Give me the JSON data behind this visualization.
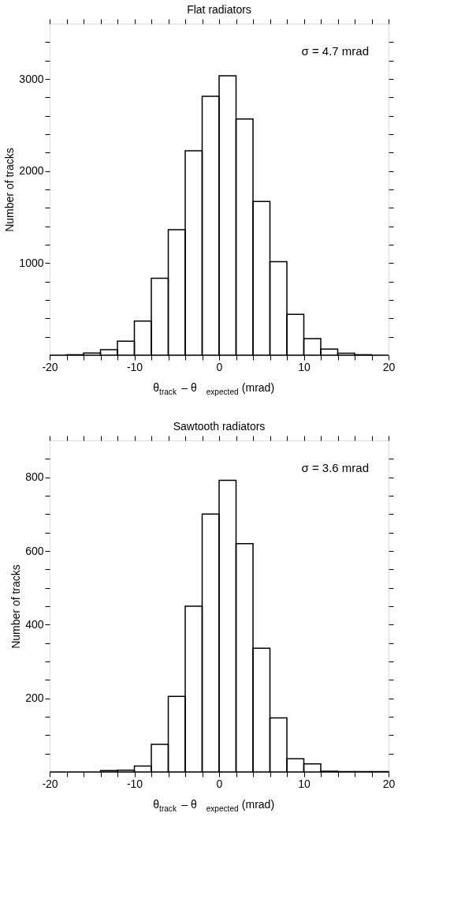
{
  "chart_data": [
    {
      "type": "histogram",
      "title": "Flat radiators",
      "xlabel": "θ$_{track}$ – θ$_{expected}$ (mrad)",
      "ylabel": "Number of tracks",
      "bins": [
        -20,
        -18,
        -16,
        -14,
        -12,
        -10,
        -8,
        -6,
        -4,
        -2,
        0,
        2,
        4,
        6,
        8,
        10,
        12,
        14,
        16,
        18,
        20
      ],
      "values": [
        0,
        5,
        24,
        61,
        152,
        370,
        835,
        1362,
        2221,
        2811,
        3035,
        2564,
        1670,
        1016,
        444,
        181,
        66,
        21,
        5,
        0
      ],
      "color": "#000000",
      "xlim": [
        -20,
        20
      ],
      "ylim": [
        0,
        3600
      ],
      "xticks": [
        -20,
        {
          "value": -18,
          "label": null
        },
        {
          "value": -16,
          "label": null
        },
        {
          "value": -14,
          "label": null
        },
        {
          "value": -12,
          "label": null
        },
        -10,
        {
          "value": -8,
          "label": null
        },
        {
          "value": -6,
          "label": null
        },
        {
          "value": -4,
          "label": null
        },
        {
          "value": -2,
          "label": null
        },
        0,
        {
          "value": 2,
          "label": null
        },
        {
          "value": 4,
          "label": null
        },
        {
          "value": 6,
          "label": null
        },
        {
          "value": 8,
          "label": null
        },
        10,
        {
          "value": 12,
          "label": null
        },
        {
          "value": 14,
          "label": null
        },
        {
          "value": 16,
          "label": null
        },
        {
          "value": 18,
          "label": null
        },
        20
      ],
      "yticks": [
        {
          "value": 200,
          "label": null
        },
        {
          "value": 400,
          "label": null
        },
        {
          "value": 600,
          "label": null
        },
        {
          "value": 800,
          "label": null
        },
        1000,
        {
          "value": 1200,
          "label": null
        },
        {
          "value": 1400,
          "label": null
        },
        {
          "value": 1600,
          "label": null
        },
        {
          "value": 1800,
          "label": null
        },
        2000,
        {
          "value": 2200,
          "label": null
        },
        {
          "value": 2400,
          "label": null
        },
        {
          "value": 2600,
          "label": null
        },
        {
          "value": 2800,
          "label": null
        },
        3000,
        {
          "value": 3200,
          "label": null
        },
        {
          "value": 3400,
          "label": null
        }
      ],
      "annotations": [
        "σ = 4.7 mrad"
      ],
      "grid": false
    },
    {
      "type": "histogram",
      "title": "Sawtooth radiators",
      "xlabel": "θ$_{track}$ – θ$_{expected}$ (mrad)",
      "ylabel": "Number of tracks",
      "bins": [
        -20,
        -18,
        -16,
        -14,
        -12,
        -10,
        -8,
        -6,
        -4,
        -2,
        0,
        2,
        4,
        6,
        8,
        10,
        12,
        14,
        16,
        18,
        20
      ],
      "values": [
        0,
        0,
        0,
        4,
        5,
        16,
        75,
        205,
        450,
        700,
        792,
        620,
        336,
        147,
        36,
        22,
        2,
        1,
        1,
        1
      ],
      "color": "#000000",
      "xlim": [
        -20,
        20
      ],
      "ylim": [
        0,
        900
      ],
      "xticks": [
        -20,
        {
          "value": -18,
          "label": null
        },
        {
          "value": -16,
          "label": null
        },
        {
          "value": -14,
          "label": null
        },
        {
          "value": -12,
          "label": null
        },
        -10,
        {
          "value": -8,
          "label": null
        },
        {
          "value": -6,
          "label": null
        },
        {
          "value": -4,
          "label": null
        },
        {
          "value": -2,
          "label": null
        },
        0,
        {
          "value": 2,
          "label": null
        },
        {
          "value": 4,
          "label": null
        },
        {
          "value": 6,
          "label": null
        },
        {
          "value": 8,
          "label": null
        },
        10,
        {
          "value": 12,
          "label": null
        },
        {
          "value": 14,
          "label": null
        },
        {
          "value": 16,
          "label": null
        },
        {
          "value": 18,
          "label": null
        },
        20
      ],
      "yticks": [
        {
          "value": 50,
          "label": null
        },
        {
          "value": 100,
          "label": null
        },
        {
          "value": 150,
          "label": null
        },
        200,
        {
          "value": 250,
          "label": null
        },
        {
          "value": 300,
          "label": null
        },
        {
          "value": 350,
          "label": null
        },
        400,
        {
          "value": 450,
          "label": null
        },
        {
          "value": 500,
          "label": null
        },
        {
          "value": 550,
          "label": null
        },
        600,
        {
          "value": 650,
          "label": null
        },
        {
          "value": 700,
          "label": null
        },
        {
          "value": 750,
          "label": null
        },
        800,
        {
          "value": 850,
          "label": null
        }
      ],
      "annotations": [
        "σ = 3.6 mrad"
      ],
      "grid": false
    }
  ]
}
